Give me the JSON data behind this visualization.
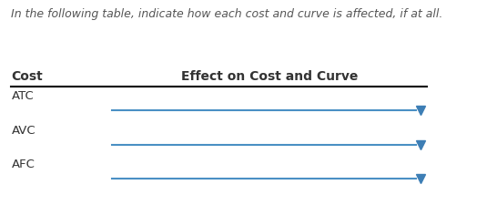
{
  "instruction_text": "In the following table, indicate how each cost and curve is affected, if at all.",
  "col_header_left": "Cost",
  "col_header_right": "Effect on Cost and Curve",
  "rows": [
    "ATC",
    "AVC",
    "AFC"
  ],
  "bg_color": "#ffffff",
  "text_color": "#333333",
  "header_line_color": "#000000",
  "dropdown_line_color": "#4a90c4",
  "dropdown_arrow_color": "#3d7eb5",
  "instruction_color": "#555555",
  "instruction_fontsize": 9.0,
  "header_fontsize": 10,
  "row_fontsize": 9.5,
  "fig_width": 5.46,
  "fig_height": 2.25,
  "dpi": 100
}
